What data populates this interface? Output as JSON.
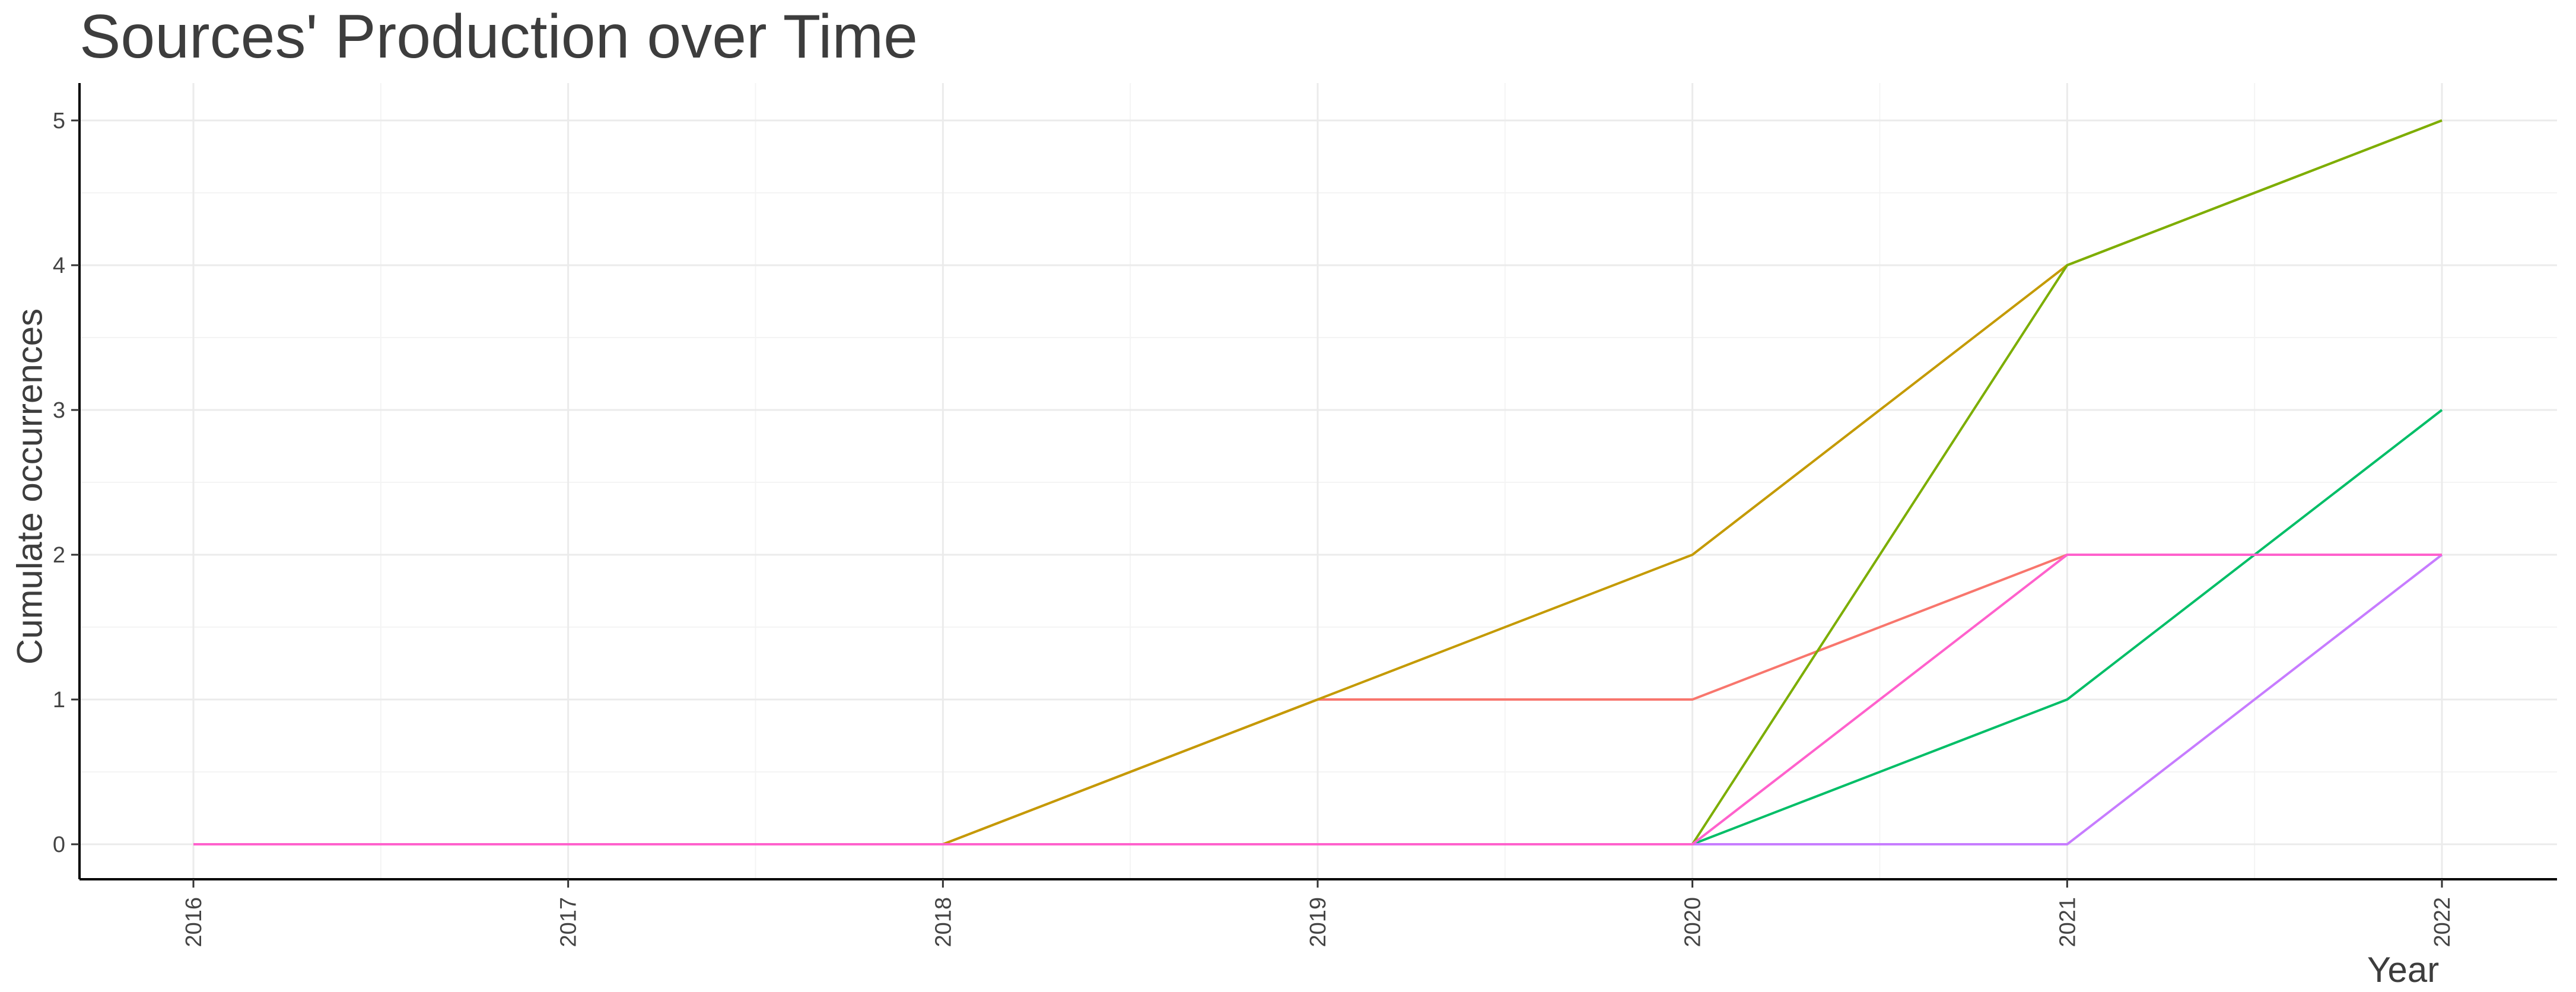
{
  "chart_data": {
    "type": "line",
    "title": "Sources' Production over Time",
    "xlabel": "Year",
    "ylabel": "Cumulate occurrences",
    "x": [
      2016,
      2017,
      2018,
      2019,
      2020,
      2021,
      2022
    ],
    "xlim": [
      2016,
      2022
    ],
    "ylim": [
      0,
      5
    ],
    "yticks": [
      0,
      1,
      2,
      3,
      4,
      5
    ],
    "grid": true,
    "legend": "none",
    "series": [
      {
        "color": "#F8766D",
        "values": [
          0,
          0,
          0,
          1,
          1,
          2,
          2
        ]
      },
      {
        "color": "#C49A00",
        "values": [
          0,
          0,
          0,
          1,
          2,
          4,
          5
        ]
      },
      {
        "color": "#7CAE00",
        "values": [
          0,
          0,
          0,
          0,
          0,
          4,
          5
        ]
      },
      {
        "color": "#00BE67",
        "values": [
          0,
          0,
          0,
          0,
          0,
          1,
          3
        ]
      },
      {
        "color": "#C77CFF",
        "values": [
          0,
          0,
          0,
          0,
          0,
          0,
          2
        ]
      },
      {
        "color": "#FF61CC",
        "values": [
          0,
          0,
          0,
          0,
          0,
          2,
          2
        ]
      }
    ]
  }
}
